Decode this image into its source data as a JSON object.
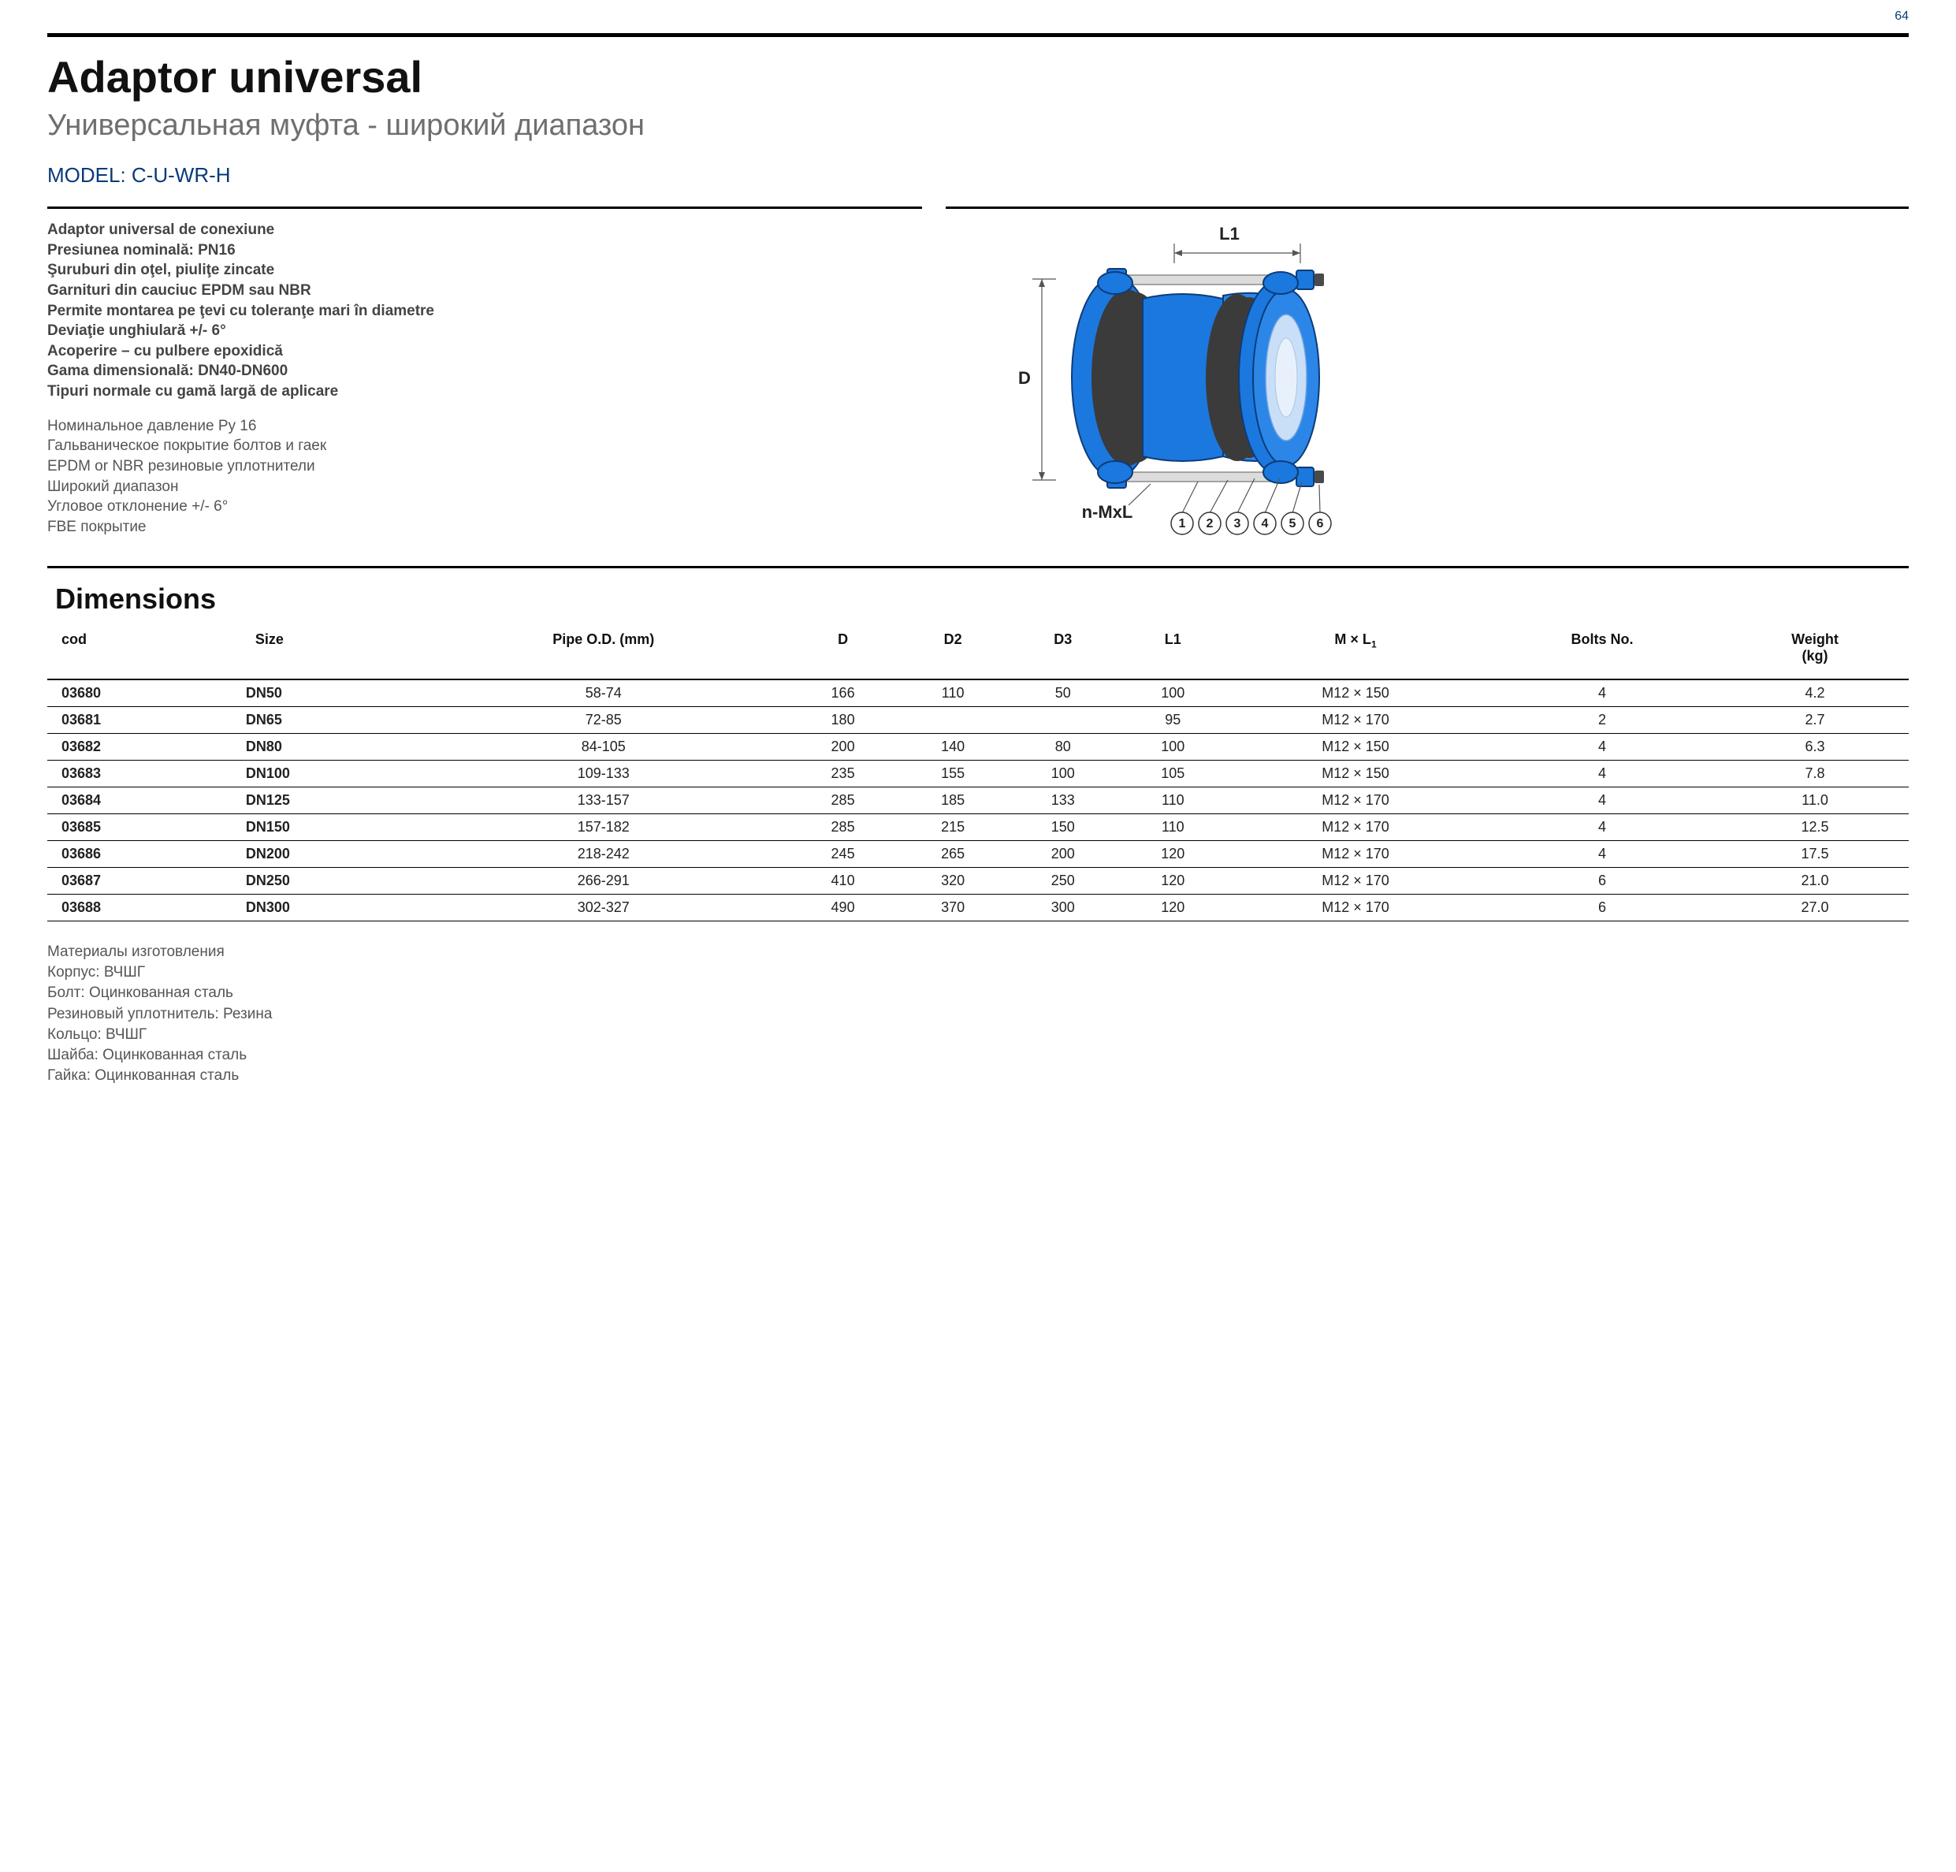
{
  "page_number": "64",
  "title": "Adaptor universal",
  "subtitle": "Универсальная муфта - широкий диапазон",
  "model_label": "MODEL: C-U-WR-H",
  "specs_bold": [
    "Adaptor universal de conexiune",
    "Presiunea nominală: PN16",
    "Şuruburi din oţel, piuliţe zincate",
    "Garnituri din cauciuc EPDM sau NBR",
    "Permite montarea pe ţevi cu toleranţe mari în diametre",
    "Deviaţie unghiulară +/- 6°",
    "Acoperire – cu pulbere epoxidică",
    "Gama dimensională: DN40-DN600",
    "Tipuri normale cu gamă largă de aplicare"
  ],
  "specs_plain": [
    "Номинальное давление Ру 16",
    "Гальваническое покрытие болтов и гаек",
    "EPDM or NBR резиновые уплотнители",
    "Широкий диапазон",
    "Угловое отклонение +/- 6°",
    "FBE покрытие"
  ],
  "diagram": {
    "label_L1": "L1",
    "label_D": "D",
    "label_nML": "n-MxL",
    "callouts": [
      "1",
      "2",
      "3",
      "4",
      "5",
      "6"
    ]
  },
  "dimensions_heading": "Dimensions",
  "table": {
    "columns": [
      "cod",
      "Size",
      "Pipe O.D. (mm)",
      "D",
      "D2",
      "D3",
      "L1",
      "M × L",
      "Bolts No.",
      "Weight (kg)"
    ],
    "ml_sub": "1",
    "rows": [
      [
        "03680",
        "DN50",
        "58-74",
        "166",
        "110",
        "50",
        "100",
        "M12 × 150",
        "4",
        "4.2"
      ],
      [
        "03681",
        "DN65",
        "72-85",
        "180",
        "",
        "",
        "95",
        "M12 × 170",
        "2",
        "2.7"
      ],
      [
        "03682",
        "DN80",
        "84-105",
        "200",
        "140",
        "80",
        "100",
        "M12 × 150",
        "4",
        "6.3"
      ],
      [
        "03683",
        "DN100",
        "109-133",
        "235",
        "155",
        "100",
        "105",
        "M12 × 150",
        "4",
        "7.8"
      ],
      [
        "03684",
        "DN125",
        "133-157",
        "285",
        "185",
        "133",
        "110",
        "M12 × 170",
        "4",
        "11.0"
      ],
      [
        "03685",
        "DN150",
        "157-182",
        "285",
        "215",
        "150",
        "110",
        "M12 × 170",
        "4",
        "12.5"
      ],
      [
        "03686",
        "DN200",
        "218-242",
        "245",
        "265",
        "200",
        "120",
        "M12 × 170",
        "4",
        "17.5"
      ],
      [
        "03687",
        "DN250",
        "266-291",
        "410",
        "320",
        "250",
        "120",
        "M12 × 170",
        "6",
        "21.0"
      ],
      [
        "03688",
        "DN300",
        "302-327",
        "490",
        "370",
        "300",
        "120",
        "M12 × 170",
        "6",
        "27.0"
      ]
    ]
  },
  "materials": [
    "Материалы изготовления",
    "Корпус: ВЧШГ",
    "Болт: Оцинкованная сталь",
    "Резиновый уплотнитель: Резина",
    "Кольцо: ВЧШГ",
    "Шайба: Оцинкованная сталь",
    "Гайка: Оцинкованная сталь"
  ]
}
